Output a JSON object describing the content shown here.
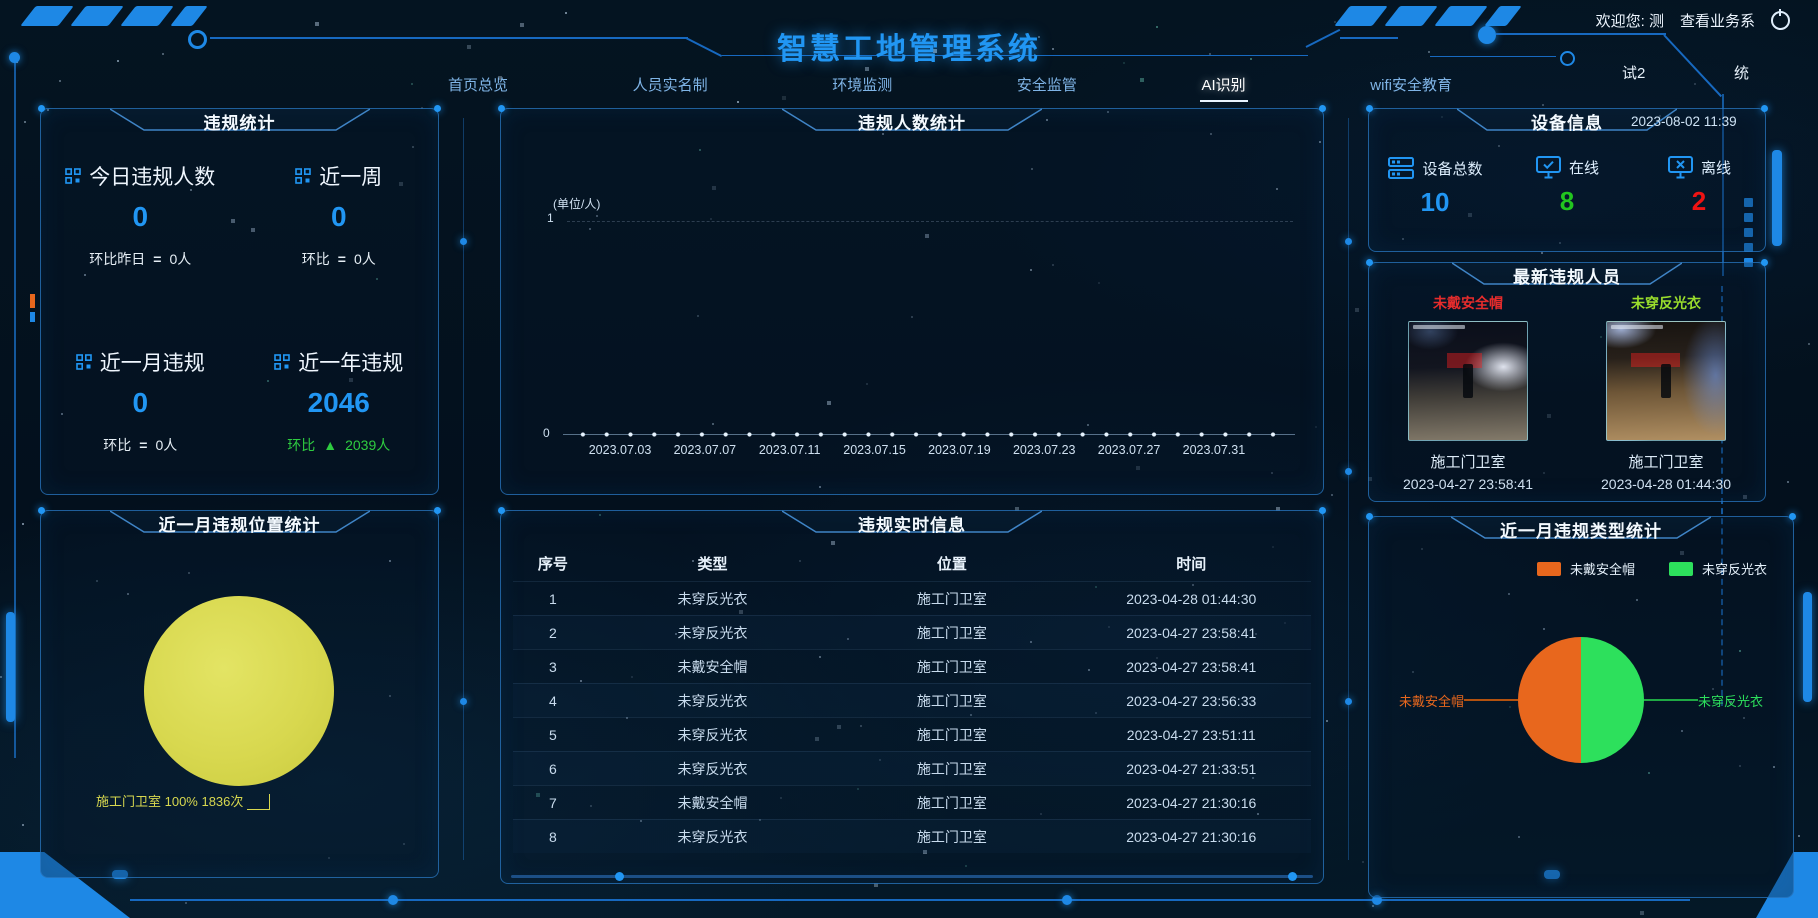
{
  "colors": {
    "accent_blue": "#2196f3",
    "green": "#2ecc40",
    "red": "#ef1313",
    "orange": "#e8671d",
    "pie_yellow": "#d8d84f",
    "pie_green": "#2de05c",
    "tag_red": "#e62c2c",
    "tag_green": "#9ade2c"
  },
  "header": {
    "title": "智慧工地管理系统",
    "welcome_prefix": "欢迎您:",
    "user": "测",
    "business_link": "查看业务系",
    "float_a": "试2",
    "float_b": "统"
  },
  "nav": {
    "active": "AI识别",
    "items": [
      {
        "label": "首页总览"
      },
      {
        "label": "人员实名制"
      },
      {
        "label": "环境监测"
      },
      {
        "label": "安全监管"
      },
      {
        "label": "AI识别"
      },
      {
        "label": "wifi安全教育"
      }
    ]
  },
  "panels": {
    "violation_stats": {
      "title": "违规统计",
      "stats": [
        {
          "label": "今日违规人数",
          "value": "0",
          "compare_label": "环比昨日",
          "compare_symbol": "=",
          "compare_value": "0人",
          "trend": "flat"
        },
        {
          "label": "近一周",
          "value": "0",
          "compare_label": "环比",
          "compare_symbol": "=",
          "compare_value": "0人",
          "trend": "flat"
        },
        {
          "label": "近一月违规",
          "value": "0",
          "compare_label": "环比",
          "compare_symbol": "=",
          "compare_value": "0人",
          "trend": "flat"
        },
        {
          "label": "近一年违规",
          "value": "2046",
          "compare_label": "环比",
          "compare_symbol": "▲",
          "compare_value": "2039人",
          "trend": "up"
        }
      ]
    },
    "people_chart": {
      "title": "违规人数统计",
      "unit": "(单位/人)",
      "y_max": "1",
      "y_min": "0",
      "x_labels": [
        "2023.07.03",
        "2023.07.07",
        "2023.07.11",
        "2023.07.15",
        "2023.07.19",
        "2023.07.23",
        "2023.07.27",
        "2023.07.31"
      ]
    },
    "device": {
      "title": "设备信息",
      "datetime": "2023-08-02 11:39",
      "metrics": [
        {
          "label": "设备总数",
          "value": "10",
          "icon": "server-icon"
        },
        {
          "label": "在线",
          "value": "8",
          "icon": "monitor-check-icon"
        },
        {
          "label": "离线",
          "value": "2",
          "icon": "monitor-x-icon"
        }
      ]
    },
    "latest": {
      "title": "最新违规人员",
      "cards": [
        {
          "tag": "未戴安全帽",
          "location": "施工门卫室",
          "time": "2023-04-27 23:58:41"
        },
        {
          "tag": "未穿反光衣",
          "location": "施工门卫室",
          "time": "2023-04-28 01:44:30"
        }
      ]
    },
    "location_pie": {
      "title": "近一月违规位置统计",
      "callout": "施工门卫室 100% 1836次"
    },
    "realtime": {
      "title": "违规实时信息",
      "columns": [
        "序号",
        "类型",
        "位置",
        "时间"
      ],
      "rows": [
        [
          "1",
          "未穿反光衣",
          "施工门卫室",
          "2023-04-28 01:44:30"
        ],
        [
          "2",
          "未穿反光衣",
          "施工门卫室",
          "2023-04-27 23:58:41"
        ],
        [
          "3",
          "未戴安全帽",
          "施工门卫室",
          "2023-04-27 23:58:41"
        ],
        [
          "4",
          "未穿反光衣",
          "施工门卫室",
          "2023-04-27 23:56:33"
        ],
        [
          "5",
          "未穿反光衣",
          "施工门卫室",
          "2023-04-27 23:51:11"
        ],
        [
          "6",
          "未穿反光衣",
          "施工门卫室",
          "2023-04-27 21:33:51"
        ],
        [
          "7",
          "未戴安全帽",
          "施工门卫室",
          "2023-04-27 21:30:16"
        ],
        [
          "8",
          "未穿反光衣",
          "施工门卫室",
          "2023-04-27 21:30:16"
        ]
      ]
    },
    "type_pie": {
      "title": "近一月违规类型统计",
      "legend": [
        "未戴安全帽",
        "未穿反光衣"
      ],
      "label_left": "未戴安全帽",
      "label_right": "未穿反光衣"
    }
  },
  "chart_data": [
    {
      "type": "line",
      "title": "违规人数统计",
      "ylabel": "(单位/人)",
      "ylim": [
        0,
        1
      ],
      "grid": false,
      "legend_position": "none",
      "x": [
        "2023.07.03",
        "2023.07.07",
        "2023.07.11",
        "2023.07.15",
        "2023.07.19",
        "2023.07.23",
        "2023.07.27",
        "2023.07.31"
      ],
      "series": [
        {
          "name": "违规人数",
          "values": [
            0,
            0,
            0,
            0,
            0,
            0,
            0,
            0
          ]
        }
      ]
    },
    {
      "type": "pie",
      "title": "近一月违规位置统计",
      "labels": [
        "施工门卫室"
      ],
      "values": [
        1836
      ],
      "percents": [
        100
      ],
      "colors": [
        "#d8d84f"
      ],
      "legend_position": "none"
    },
    {
      "type": "pie",
      "title": "近一月违规类型统计",
      "labels": [
        "未戴安全帽",
        "未穿反光衣"
      ],
      "values": [
        50,
        50
      ],
      "colors": [
        "#e8671d",
        "#2de05c"
      ],
      "legend_position": "top"
    }
  ]
}
